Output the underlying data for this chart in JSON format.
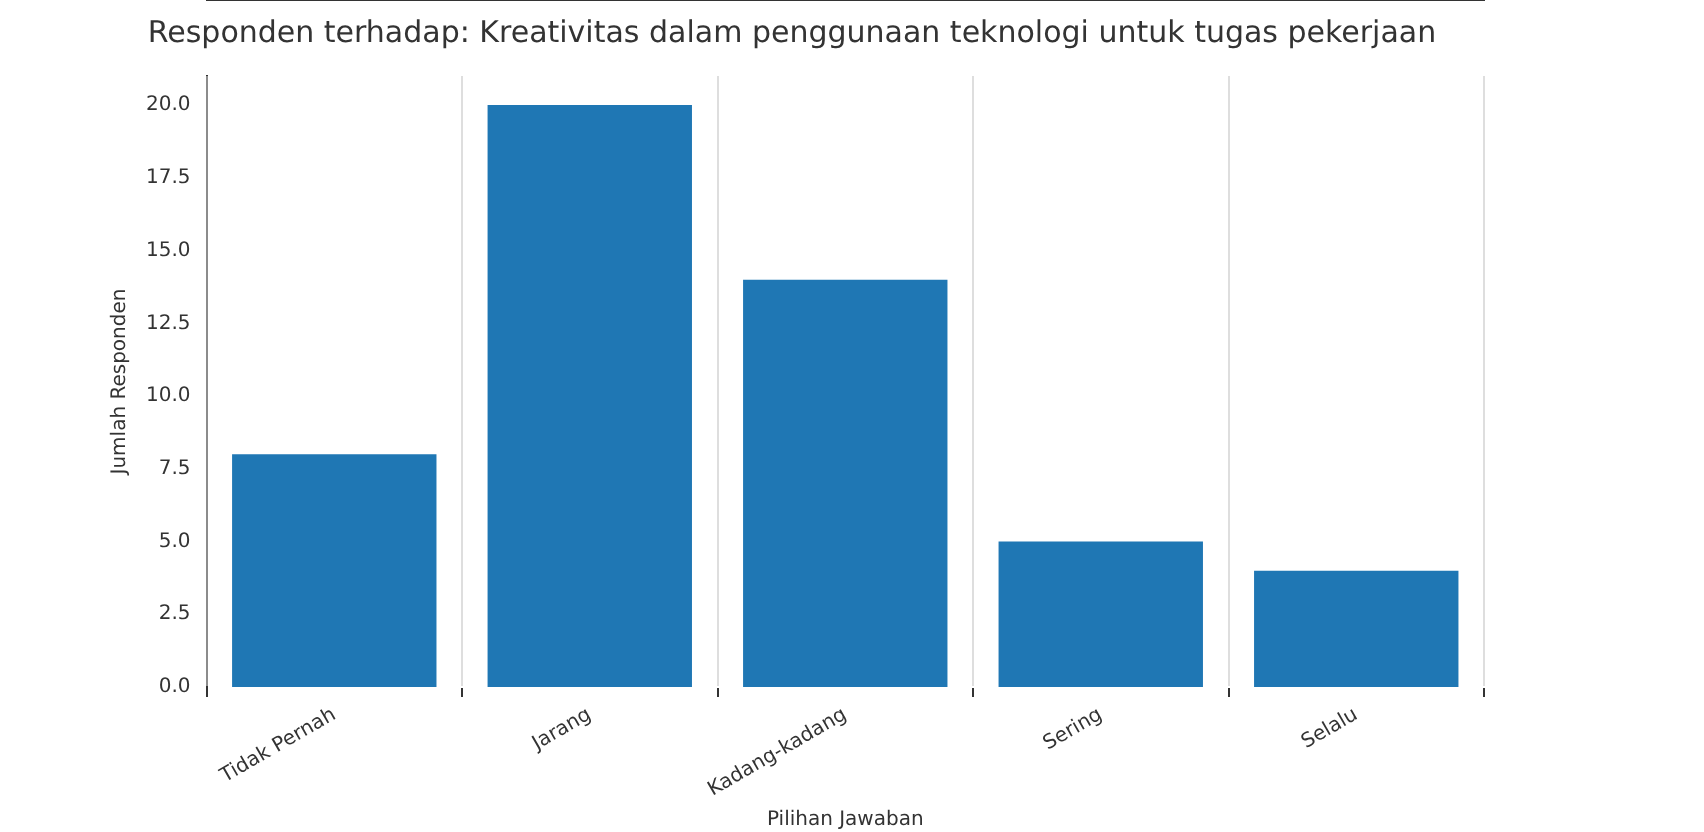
{
  "chart_data": {
    "type": "bar",
    "title": "Responden terhadap: Kreativitas dalam penggunaan teknologi untuk tugas pekerjaan",
    "xlabel": "Pilihan Jawaban",
    "ylabel": "Jumlah Responden",
    "categories": [
      "Tidak Pernah",
      "Jarang",
      "Kadang-kadang",
      "Sering",
      "Selalu"
    ],
    "values": [
      8,
      20,
      14,
      5,
      4
    ],
    "color": "#1f77b4",
    "ylim": [
      0,
      21
    ],
    "yticks": [
      {
        "value": 0,
        "label": "0.0"
      },
      {
        "value": 2.5,
        "label": "2.5"
      },
      {
        "value": 5,
        "label": "5.0"
      },
      {
        "value": 7.5,
        "label": "7.5"
      },
      {
        "value": 10,
        "label": "10.0"
      },
      {
        "value": 12.5,
        "label": "12.5"
      },
      {
        "value": 15,
        "label": "15.0"
      },
      {
        "value": 17.5,
        "label": "17.5"
      },
      {
        "value": 20,
        "label": "20.0"
      }
    ],
    "grid": "x"
  }
}
